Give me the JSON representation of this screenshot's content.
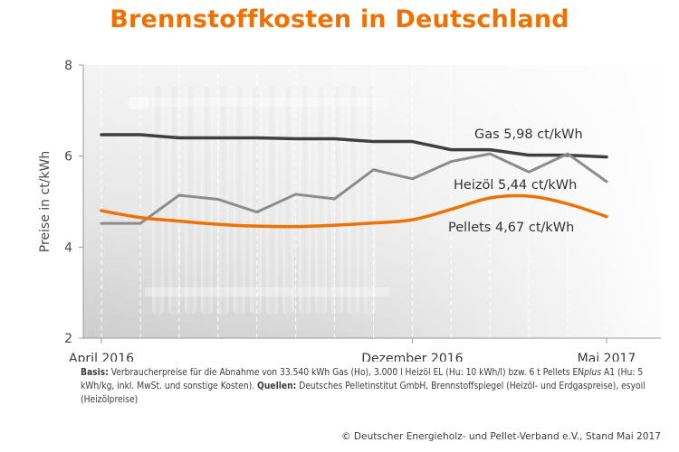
{
  "title": "Brennstoffkosten in Deutschland",
  "colors": {
    "accent": "#ee7203",
    "gas": "#3f3f3f",
    "heizoel": "#8c8c8c",
    "pellets": "#ee7203"
  },
  "chart_data": {
    "type": "line",
    "title": "Brennstoffkosten in Deutschland",
    "xlabel": "",
    "ylabel": "Preise in ct/kWh",
    "ylim": [
      2,
      8
    ],
    "yticks": [
      2,
      4,
      6,
      8
    ],
    "x": [
      "2016-04",
      "2016-05",
      "2016-06",
      "2016-07",
      "2016-08",
      "2016-09",
      "2016-10",
      "2016-11",
      "2016-12",
      "2017-01",
      "2017-02",
      "2017-03",
      "2017-04",
      "2017-05"
    ],
    "xtick_labels": [
      {
        "x": "2016-04",
        "label": "April 2016"
      },
      {
        "x": "2016-12",
        "label": "Dezember 2016"
      },
      {
        "x": "2017-05",
        "label": "Mai 2017"
      }
    ],
    "grid": true,
    "series": [
      {
        "name": "Gas",
        "label": "Gas 5,98 ct/kWh",
        "color": "#3f3f3f",
        "values": [
          6.47,
          6.47,
          6.4,
          6.4,
          6.4,
          6.38,
          6.38,
          6.32,
          6.32,
          6.14,
          6.14,
          6.02,
          6.02,
          5.98
        ]
      },
      {
        "name": "Heizöl",
        "label": "Heizöl 5,44 ct/kWh",
        "color": "#8c8c8c",
        "values": [
          4.52,
          4.52,
          5.14,
          5.05,
          4.77,
          5.16,
          5.06,
          5.7,
          5.5,
          5.88,
          6.05,
          5.65,
          6.05,
          5.44
        ]
      },
      {
        "name": "Pellets",
        "label": "Pellets 4,67 ct/kWh",
        "color": "#ee7203",
        "values": [
          4.8,
          4.65,
          4.57,
          4.5,
          4.46,
          4.45,
          4.48,
          4.53,
          4.6,
          4.83,
          5.08,
          5.12,
          4.95,
          4.67
        ]
      }
    ]
  },
  "footnote": {
    "basis_label": "Basis:",
    "basis_text_1": " Verbraucherpreise für die Abnahme von 33.540 kWh Gas (Ho), 3.000 l Heizöl EL (Hu: 10 kWh/l) bzw. 6 t Pellets EN",
    "basis_plus": "plus",
    "basis_text_2": " A1 (Hu: 5 kWh/kg, inkl. MwSt. und sonstige Kosten).",
    "sources_label": "Quellen:",
    "sources_text": " Deutsches Pelletinstitut GmbH, Brennstoffspiegel (Heizöl- und Erdgaspreise), esyoil (Heizölpreise)"
  },
  "credit": "© Deutscher Energieholz- und Pellet-Verband e.V., Stand Mai 2017"
}
